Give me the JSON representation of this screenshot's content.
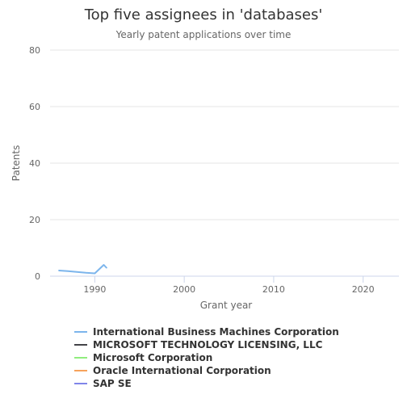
{
  "chart_data": {
    "type": "line",
    "title": "Top five assignees in 'databases'",
    "subtitle": "Yearly patent applications over time",
    "xlabel": "Grant year",
    "ylabel": "Patents",
    "xlim": [
      1985,
      2024
    ],
    "ylim": [
      0,
      80
    ],
    "x_ticks": [
      "1990",
      "2000",
      "2010",
      "2020"
    ],
    "y_ticks": [
      "0",
      "20",
      "40",
      "60",
      "80"
    ],
    "grid": "horizontal",
    "legend_position": "bottom",
    "series": [
      {
        "name": "International Business Machines Corporation",
        "color": "#7cb5ec",
        "points": [
          [
            1986,
            2
          ],
          [
            1987,
            1.8
          ],
          [
            1988,
            1.5
          ],
          [
            1989,
            1.2
          ],
          [
            1990,
            1
          ],
          [
            1991,
            4
          ],
          [
            1991.3,
            3
          ]
        ]
      },
      {
        "name": "MICROSOFT TECHNOLOGY LICENSING, LLC",
        "color": "#434348",
        "points": []
      },
      {
        "name": "Microsoft Corporation",
        "color": "#90ed7d",
        "points": []
      },
      {
        "name": "Oracle International Corporation",
        "color": "#f7a35c",
        "points": []
      },
      {
        "name": "SAP SE",
        "color": "#8085e9",
        "points": []
      }
    ]
  }
}
